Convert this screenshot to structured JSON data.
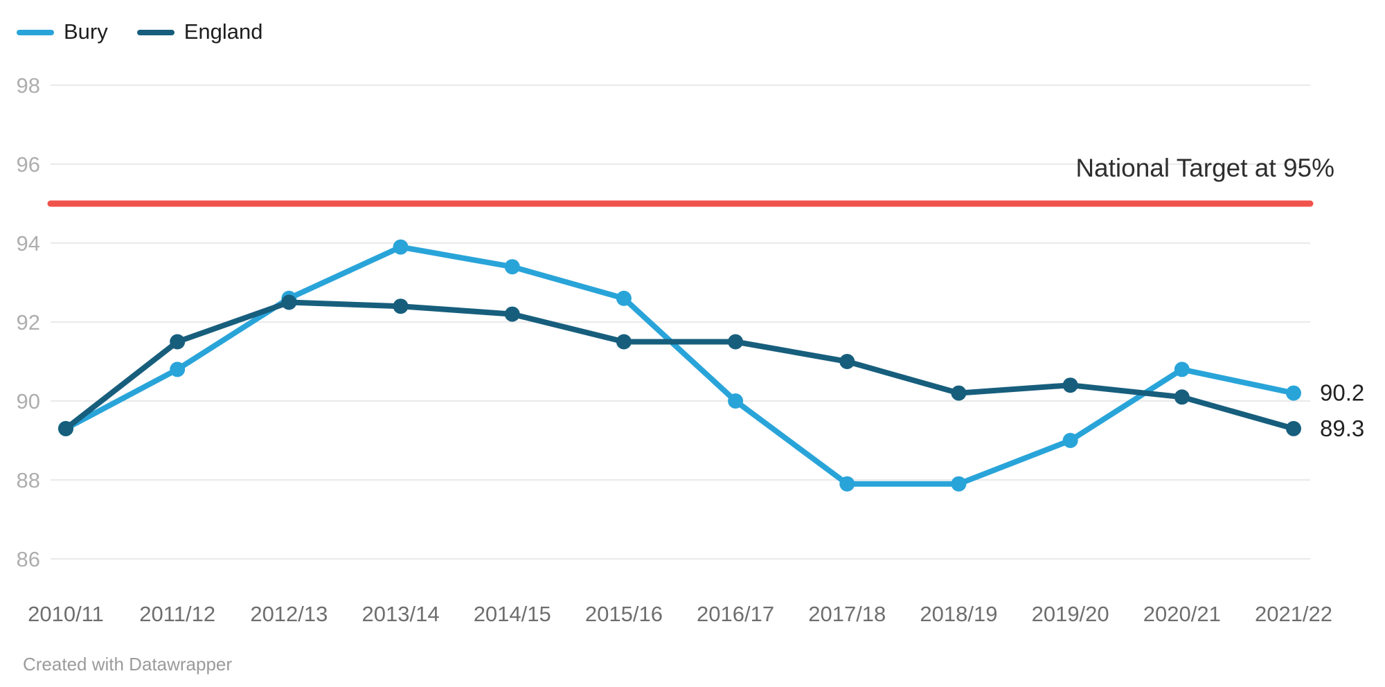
{
  "page": {
    "background": "#ffffff"
  },
  "legend": {
    "items": [
      {
        "label": "Bury",
        "color": "#29a4d9"
      },
      {
        "label": "England",
        "color": "#175e7d"
      }
    ]
  },
  "chart_data": {
    "type": "line",
    "categories": [
      "2010/11",
      "2011/12",
      "2012/13",
      "2013/14",
      "2014/15",
      "2015/16",
      "2016/17",
      "2017/18",
      "2018/19",
      "2019/20",
      "2020/21",
      "2021/22"
    ],
    "series": [
      {
        "name": "Bury",
        "color": "#29a4d9",
        "values": [
          89.3,
          90.8,
          92.6,
          93.9,
          93.4,
          92.6,
          90.0,
          87.9,
          87.9,
          89.0,
          90.8,
          90.2
        ],
        "end_label": "90.2"
      },
      {
        "name": "England",
        "color": "#175e7d",
        "values": [
          89.3,
          91.5,
          92.5,
          92.4,
          92.2,
          91.5,
          91.5,
          91.0,
          90.2,
          90.4,
          90.1,
          89.3
        ],
        "end_label": "89.3"
      }
    ],
    "title": "",
    "xlabel": "",
    "ylabel": "",
    "ylim": [
      86,
      98
    ],
    "yticks": [
      86,
      88,
      90,
      92,
      94,
      96,
      98
    ],
    "grid": true,
    "legend_position": "top-left",
    "target_line": {
      "value": 95,
      "label": "National Target at 95%",
      "color": "#f0524c"
    }
  },
  "footer": {
    "text": "Created with Datawrapper"
  },
  "style": {
    "grid_color": "#e9e9e9",
    "ytick_color": "#aeaeae",
    "xtick_color": "#6e6e6e",
    "value_label_color": "#222222",
    "marker_radius": 11,
    "line_width": 8,
    "target_line_width": 9
  }
}
